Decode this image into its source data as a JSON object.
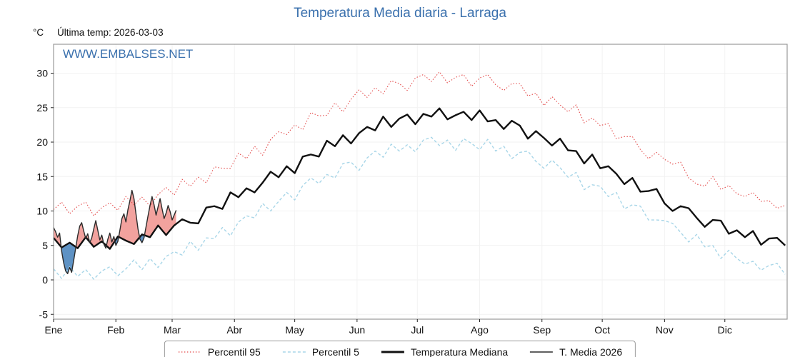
{
  "header": {
    "title": "Temperatura Media diaria - Larraga",
    "unit_label": "°C",
    "last_temp_label": "Última temp: 2026-03-03",
    "watermark": "WWW.EMBALSES.NET"
  },
  "legend": {
    "items": [
      {
        "label": "Percentil 95"
      },
      {
        "label": "Percentil 5"
      },
      {
        "label": "Temperatura Mediana"
      },
      {
        "label": "T. Media 2026"
      }
    ]
  },
  "chart_data": {
    "type": "line",
    "title": "Temperatura Media diaria - Larraga",
    "xlabel": "",
    "ylabel": "°C",
    "ylim": [
      -5.7,
      34.2
    ],
    "yticks": [
      -5,
      0,
      5,
      10,
      15,
      20,
      25,
      30
    ],
    "x_months": [
      "Ene",
      "Feb",
      "Mar",
      "Abr",
      "May",
      "Jun",
      "Jul",
      "Ago",
      "Sep",
      "Oct",
      "Nov",
      "Dic"
    ],
    "month_start_days": [
      0,
      31,
      59,
      90,
      120,
      151,
      181,
      212,
      243,
      273,
      304,
      334
    ],
    "days_total": 365,
    "grid": true,
    "legend_position": "bottom",
    "colors": {
      "accent_blue": "#3a70ad",
      "p95": "#e34a4a",
      "p5": "#a8d6e8",
      "median": "#111111",
      "t2026": "#2b2b2b",
      "fill_above": "#f2a29e",
      "fill_below": "#5e92c4",
      "grid": "#f2f2f2",
      "border": "#9a9a9a"
    },
    "series_step_days": 4,
    "series": [
      {
        "name": "Percentil 95",
        "values": [
          10.2,
          11.3,
          9.6,
          10.7,
          11.3,
          9.3,
          10.5,
          11.2,
          10.1,
          12.1,
          10.9,
          12.0,
          10.7,
          12.4,
          13.4,
          12.3,
          14.6,
          13.6,
          14.9,
          14.1,
          16.4,
          16.2,
          16.2,
          18.4,
          17.6,
          19.4,
          18.1,
          20.4,
          21.5,
          21.1,
          22.5,
          21.8,
          24.3,
          23.8,
          23.9,
          25.7,
          24.4,
          26.2,
          27.6,
          26.5,
          27.9,
          27.0,
          28.9,
          28.5,
          27.5,
          29.3,
          29.8,
          28.8,
          30.2,
          28.6,
          29.4,
          29.8,
          28.1,
          29.3,
          29.8,
          28.3,
          27.5,
          28.5,
          28.5,
          26.7,
          27.1,
          25.3,
          26.6,
          25.4,
          24.4,
          25.4,
          22.8,
          23.5,
          22.4,
          22.7,
          20.5,
          20.8,
          20.8,
          18.9,
          17.6,
          18.5,
          17.5,
          16.8,
          17.1,
          14.8,
          13.9,
          13.6,
          15.0,
          13.1,
          13.7,
          12.5,
          12.1,
          12.7,
          11.4,
          11.5,
          10.4,
          10.8
        ]
      },
      {
        "name": "Percentil 5",
        "values": [
          1.6,
          0.2,
          1.9,
          0.5,
          1.5,
          0.1,
          1.3,
          1.9,
          0.6,
          1.6,
          2.9,
          1.5,
          3.1,
          1.8,
          3.4,
          4.1,
          3.6,
          5.6,
          4.3,
          6.1,
          6.0,
          7.6,
          6.4,
          8.4,
          9.3,
          9.0,
          11.1,
          10.0,
          11.4,
          12.7,
          11.6,
          13.7,
          14.8,
          14.0,
          15.3,
          14.8,
          16.9,
          17.1,
          15.9,
          17.7,
          18.7,
          17.8,
          19.7,
          18.7,
          19.6,
          18.6,
          20.3,
          20.7,
          19.5,
          20.3,
          18.8,
          20.5,
          19.8,
          18.9,
          20.4,
          18.7,
          19.4,
          17.6,
          18.5,
          18.7,
          17.2,
          16.2,
          17.4,
          16.3,
          14.9,
          15.6,
          13.1,
          13.8,
          13.6,
          12.1,
          12.7,
          10.3,
          10.9,
          10.7,
          8.7,
          8.7,
          8.6,
          8.2,
          6.9,
          5.5,
          6.6,
          4.8,
          5.0,
          3.1,
          4.3,
          3.1,
          2.3,
          2.7,
          1.4,
          2.1,
          2.4,
          0.8
        ]
      },
      {
        "name": "Temperatura Mediana",
        "values": [
          6.1,
          4.7,
          5.4,
          4.6,
          6.2,
          4.8,
          5.6,
          4.5,
          6.3,
          5.7,
          5.2,
          6.6,
          6.2,
          7.9,
          6.5,
          7.9,
          8.8,
          8.3,
          8.2,
          10.5,
          10.7,
          10.3,
          12.7,
          12.0,
          13.3,
          12.7,
          14.1,
          15.7,
          14.9,
          16.5,
          15.5,
          17.9,
          18.2,
          17.9,
          20.2,
          19.4,
          21.0,
          19.8,
          21.3,
          22.2,
          21.7,
          23.7,
          22.2,
          23.4,
          24.0,
          22.6,
          24.1,
          23.7,
          24.9,
          23.3,
          23.9,
          24.4,
          23.2,
          24.6,
          23.0,
          23.2,
          21.9,
          23.1,
          22.4,
          20.5,
          21.6,
          20.6,
          19.5,
          20.5,
          18.8,
          18.7,
          16.9,
          18.2,
          16.2,
          16.5,
          15.4,
          13.9,
          14.8,
          12.8,
          12.9,
          13.2,
          11.1,
          10.0,
          10.7,
          10.4,
          9.0,
          7.7,
          8.7,
          8.6,
          6.7,
          7.2,
          6.2,
          7.1,
          5.1,
          6.0,
          6.1,
          5.0
        ]
      }
    ],
    "t2026": {
      "name": "T. Media 2026",
      "start_day": 0,
      "step_days": 1,
      "values": [
        7.6,
        7.0,
        6.2,
        6.8,
        4.2,
        2.5,
        1.3,
        0.9,
        1.8,
        1.1,
        2.8,
        4.6,
        6.4,
        7.8,
        8.3,
        7.1,
        6.0,
        6.7,
        5.4,
        6.1,
        7.4,
        8.6,
        7.2,
        5.8,
        6.5,
        5.2,
        4.6,
        5.9,
        6.8,
        5.5,
        6.3,
        5.0,
        5.6,
        7.2,
        8.9,
        9.6,
        8.4,
        10.2,
        11.5,
        13.0,
        11.8,
        9.6,
        7.4,
        5.9,
        5.4,
        6.1,
        7.7,
        9.3,
        10.8,
        12.1,
        10.9,
        9.4,
        10.6,
        11.8,
        10.3,
        8.9,
        9.7,
        10.8,
        9.9,
        8.7,
        9.4,
        10.1
      ]
    }
  }
}
